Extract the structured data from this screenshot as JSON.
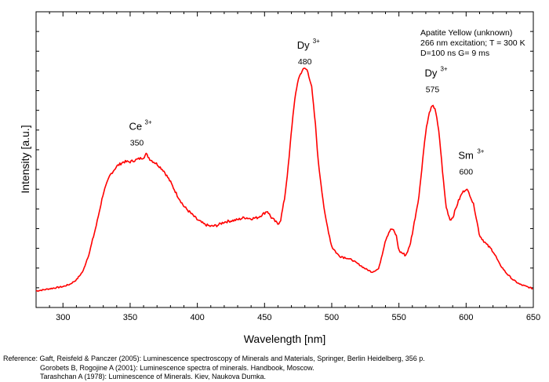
{
  "chart_data": {
    "type": "line",
    "title": "",
    "xlabel": "Wavelength [nm]",
    "ylabel": "Intensity [a.u.]",
    "xlim": [
      280,
      650
    ],
    "xticks": [
      300,
      350,
      400,
      450,
      500,
      550,
      600,
      650
    ],
    "grid": false,
    "info_lines": [
      "Apatite Yellow (unknown)",
      "266 nm excitation; T = 300 K",
      "D=100 ns G= 9 ms"
    ],
    "annotations": [
      {
        "ion": "Ce",
        "charge": "3+",
        "label": "350",
        "x": 355
      },
      {
        "ion": "Dy",
        "charge": "3+",
        "label": "480",
        "x": 480
      },
      {
        "ion": "Dy",
        "charge": "3+",
        "label": "575",
        "x": 575
      },
      {
        "ion": "Sm",
        "charge": "3+",
        "label": "600",
        "x": 600
      }
    ],
    "series": [
      {
        "color": "#ff0000",
        "x": [
          280,
          290,
          300,
          305,
          310,
          315,
          320,
          325,
          330,
          335,
          340,
          345,
          350,
          355,
          360,
          362,
          365,
          370,
          375,
          380,
          385,
          390,
          395,
          400,
          405,
          410,
          415,
          420,
          425,
          430,
          435,
          440,
          445,
          450,
          452,
          455,
          460,
          462,
          465,
          468,
          470,
          472,
          475,
          478,
          480,
          482,
          485,
          488,
          490,
          495,
          500,
          505,
          510,
          515,
          520,
          525,
          530,
          535,
          540,
          543,
          545,
          548,
          550,
          555,
          558,
          560,
          565,
          568,
          570,
          573,
          575,
          577,
          580,
          583,
          585,
          588,
          590,
          594,
          597,
          600,
          603,
          606,
          610,
          615,
          620,
          625,
          630,
          635,
          640,
          645,
          650
        ],
        "y": [
          0.0,
          0.01,
          0.02,
          0.03,
          0.05,
          0.09,
          0.18,
          0.3,
          0.44,
          0.52,
          0.56,
          0.58,
          0.58,
          0.59,
          0.6,
          0.615,
          0.59,
          0.57,
          0.54,
          0.49,
          0.43,
          0.38,
          0.35,
          0.32,
          0.3,
          0.29,
          0.295,
          0.31,
          0.315,
          0.32,
          0.33,
          0.325,
          0.33,
          0.35,
          0.36,
          0.33,
          0.3,
          0.32,
          0.42,
          0.58,
          0.72,
          0.84,
          0.95,
          0.99,
          1.0,
          0.99,
          0.92,
          0.74,
          0.58,
          0.34,
          0.2,
          0.16,
          0.15,
          0.14,
          0.12,
          0.1,
          0.085,
          0.1,
          0.23,
          0.27,
          0.28,
          0.25,
          0.18,
          0.16,
          0.2,
          0.26,
          0.43,
          0.61,
          0.72,
          0.81,
          0.83,
          0.82,
          0.7,
          0.5,
          0.38,
          0.32,
          0.33,
          0.4,
          0.44,
          0.46,
          0.43,
          0.38,
          0.25,
          0.21,
          0.18,
          0.12,
          0.08,
          0.05,
          0.03,
          0.02,
          0.01
        ]
      }
    ]
  },
  "references": [
    "Reference: Gaft, Reisfeld & Panczer (2005): Luminescence spectroscopy of Minerals and Materials, Springer, Berlin Heidelberg, 356 p.",
    "Gorobets B, Rogojine A (2001): Luminescence spectra of minerals. Handbook, Moscow.",
    "Tarashchan A (1978): Luminescence of Minerals. Kiev, Naukova Dumka."
  ]
}
